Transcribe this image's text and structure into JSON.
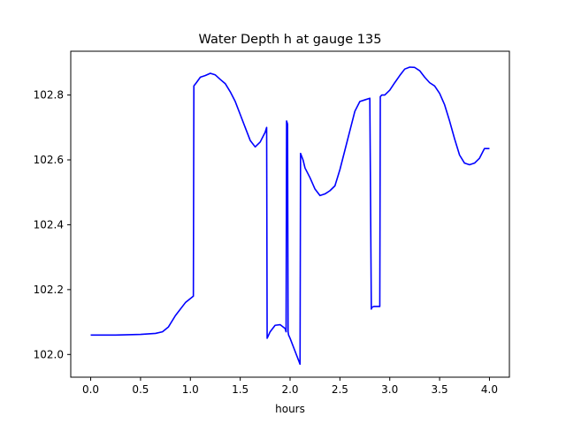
{
  "chart_data": {
    "type": "line",
    "title": "Water Depth h at gauge 135",
    "xlabel": "hours",
    "ylabel": "",
    "xlim": [
      -0.2,
      4.2
    ],
    "ylim": [
      101.93,
      102.935
    ],
    "xticks": [
      0.0,
      0.5,
      1.0,
      1.5,
      2.0,
      2.5,
      3.0,
      3.5,
      4.0
    ],
    "xtick_labels": [
      "0.0",
      "0.5",
      "1.0",
      "1.5",
      "2.0",
      "2.5",
      "3.0",
      "3.5",
      "4.0"
    ],
    "yticks": [
      102.0,
      102.2,
      102.4,
      102.6,
      102.8
    ],
    "ytick_labels": [
      "102.0",
      "102.2",
      "102.4",
      "102.6",
      "102.8"
    ],
    "grid": false,
    "legend": "none",
    "series": [
      {
        "color": "#0000ff",
        "x": [
          0.0,
          0.25,
          0.5,
          0.65,
          0.72,
          0.78,
          0.85,
          0.95,
          1.03,
          1.035,
          1.06,
          1.1,
          1.15,
          1.2,
          1.25,
          1.3,
          1.35,
          1.4,
          1.45,
          1.5,
          1.55,
          1.6,
          1.65,
          1.7,
          1.75,
          1.765,
          1.77,
          1.8,
          1.85,
          1.9,
          1.95,
          1.96,
          1.965,
          1.97,
          1.975,
          1.98,
          1.985,
          2.0,
          2.05,
          2.1,
          2.105,
          2.13,
          2.15,
          2.2,
          2.25,
          2.3,
          2.35,
          2.4,
          2.45,
          2.5,
          2.55,
          2.6,
          2.65,
          2.7,
          2.75,
          2.8,
          2.815,
          2.82,
          2.84,
          2.9,
          2.905,
          2.92,
          2.95,
          3.0,
          3.05,
          3.1,
          3.15,
          3.2,
          3.25,
          3.3,
          3.35,
          3.4,
          3.45,
          3.5,
          3.55,
          3.6,
          3.65,
          3.7,
          3.75,
          3.8,
          3.85,
          3.9,
          3.95,
          4.0
        ],
        "y": [
          102.06,
          102.06,
          102.062,
          102.065,
          102.07,
          102.085,
          102.12,
          102.16,
          102.18,
          102.828,
          102.838,
          102.855,
          102.86,
          102.867,
          102.862,
          102.848,
          102.835,
          102.81,
          102.78,
          102.74,
          102.7,
          102.66,
          102.64,
          102.655,
          102.685,
          102.7,
          102.05,
          102.07,
          102.09,
          102.092,
          102.08,
          102.07,
          102.72,
          102.715,
          102.71,
          102.07,
          102.06,
          102.05,
          102.01,
          101.97,
          102.62,
          102.6,
          102.575,
          102.545,
          102.51,
          102.49,
          102.495,
          102.505,
          102.52,
          102.57,
          102.63,
          102.69,
          102.75,
          102.78,
          102.785,
          102.79,
          102.14,
          102.145,
          102.148,
          102.148,
          102.795,
          102.8,
          102.8,
          102.815,
          102.838,
          102.86,
          102.88,
          102.886,
          102.885,
          102.875,
          102.855,
          102.838,
          102.828,
          102.805,
          102.77,
          102.72,
          102.665,
          102.615,
          102.59,
          102.585,
          102.59,
          102.605,
          102.635,
          102.635
        ]
      }
    ]
  }
}
